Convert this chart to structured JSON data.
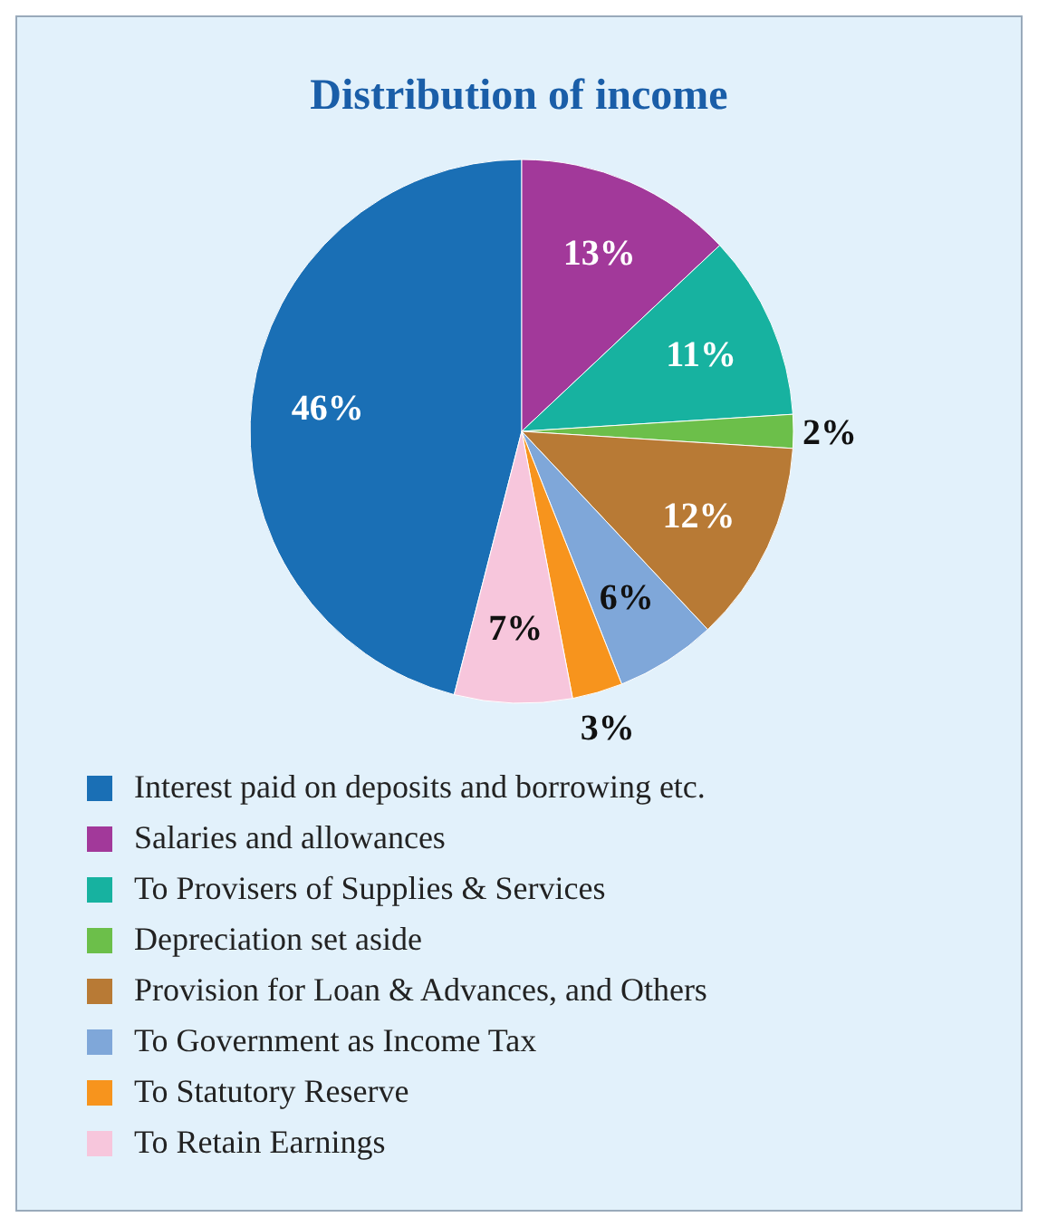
{
  "chart_data": {
    "type": "pie",
    "title": "Distribution of income",
    "categories": [
      "Interest paid on deposits and borrowing etc.",
      "Salaries and allowances",
      "To Provisers of Supplies & Services",
      "Depreciation set aside",
      "Provision for Loan & Advances, and Others",
      "To Government as Income Tax",
      "To Statutory Reserve",
      "To Retain Earnings"
    ],
    "values": [
      46,
      13,
      11,
      2,
      12,
      6,
      3,
      7
    ],
    "value_labels": [
      "46%",
      "13%",
      "11%",
      "2%",
      "12%",
      "6%",
      "3%",
      "7%"
    ],
    "colors": [
      "#1a6fb5",
      "#a2399a",
      "#17b2a0",
      "#6cbf4a",
      "#b87a35",
      "#7fa7d9",
      "#f7941d",
      "#f7c6dc"
    ],
    "legend": "bottom"
  }
}
